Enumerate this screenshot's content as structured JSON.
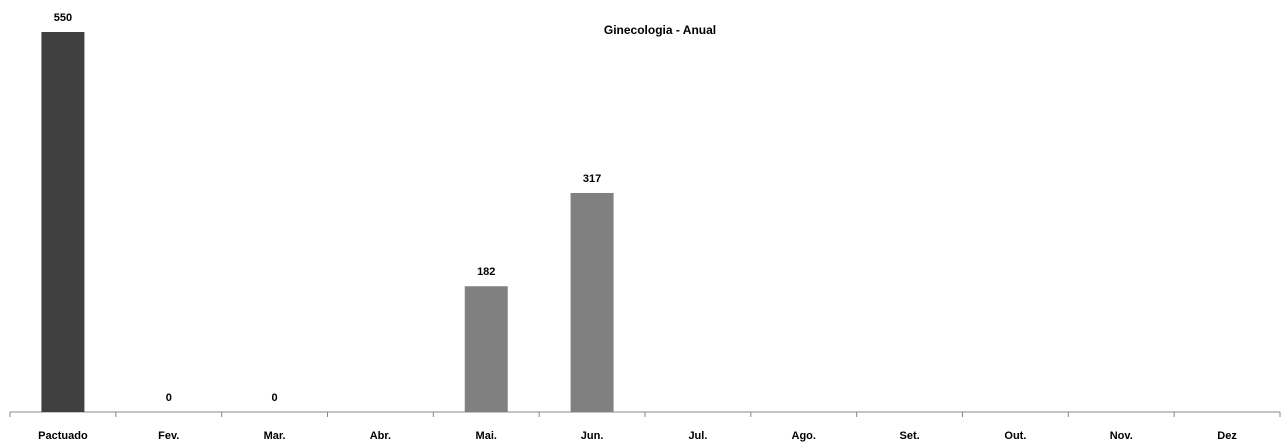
{
  "chart_data": {
    "type": "bar",
    "title": "Ginecologia - Anual",
    "categories": [
      "Pactuado",
      "Fev.",
      "Mar.",
      "Abr.",
      "Mai.",
      "Jun.",
      "Jul.",
      "Ago.",
      "Set.",
      "Out.",
      "Nov.",
      "Dez"
    ],
    "values": [
      550,
      0,
      0,
      null,
      182,
      317,
      null,
      null,
      null,
      null,
      null,
      null
    ],
    "colors": [
      "#404040",
      "#808080",
      "#808080",
      "#808080",
      "#808080",
      "#808080",
      "#808080",
      "#808080",
      "#808080",
      "#808080",
      "#808080",
      "#808080"
    ]
  }
}
